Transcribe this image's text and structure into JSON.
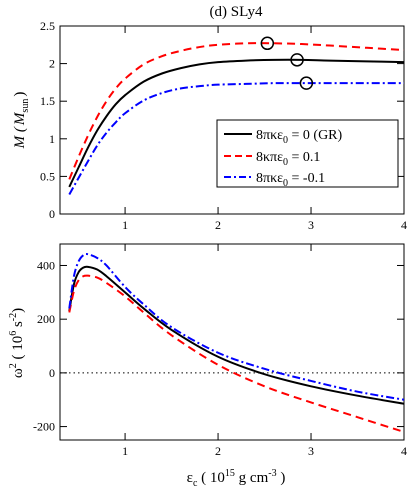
{
  "title": "(d) SLy4",
  "colors": {
    "gr": "#000000",
    "pos": "#ff0000",
    "neg": "#0000ff"
  },
  "legend": {
    "entries": [
      {
        "prefix": "8πκε",
        "sub": "0",
        "suffix": " = 0 (GR)"
      },
      {
        "prefix": "8κπε",
        "sub": "0",
        "suffix": " = 0.1"
      },
      {
        "prefix": "8πκε",
        "sub": "0",
        "suffix": " = -0.1"
      }
    ]
  },
  "axes": {
    "top": {
      "label_main": "M (",
      "label_italic": "M",
      "label_sub": "sun",
      "label_close": ")"
    },
    "bottom": {
      "label_main": "ω",
      "label_sup": "2",
      "label_unit": " ( 10",
      "label_unit_sup": "6",
      "label_unit2": " s",
      "label_unit2_sup": "-2",
      "label_close": ")"
    },
    "x": {
      "label_main": "ε",
      "label_sub": "c",
      "label_mid": " ( 10",
      "label_sup": "15",
      "label_end": " g cm",
      "label_end_sup": "-3",
      "label_close": " )"
    }
  },
  "chart_data": [
    {
      "type": "line",
      "title": "(d) SLy4",
      "xlabel": "εc (10^15 g cm^-3)",
      "ylabel": "M (Msun)",
      "xlim": [
        0.3,
        4.0
      ],
      "ylim": [
        0,
        2.5
      ],
      "xticks": [
        1,
        2,
        3,
        4
      ],
      "yticks": [
        0,
        0.5,
        1,
        1.5,
        2,
        2.5
      ],
      "grid": false,
      "legend_position": "center-right",
      "series": [
        {
          "key": "gr",
          "name": "8πκε0 = 0 (GR)",
          "style": "solid",
          "x": [
            0.4,
            0.5,
            0.6,
            0.7,
            0.8,
            0.9,
            1.0,
            1.2,
            1.4,
            1.6,
            1.8,
            2.0,
            2.3,
            2.6,
            2.9,
            3.2,
            3.6,
            4.0
          ],
          "y": [
            0.36,
            0.62,
            0.88,
            1.11,
            1.3,
            1.46,
            1.58,
            1.76,
            1.87,
            1.94,
            1.99,
            2.02,
            2.04,
            2.05,
            2.05,
            2.04,
            2.03,
            2.02
          ],
          "max_marker": [
            2.85,
            2.05
          ]
        },
        {
          "key": "pos",
          "name": "8κπε0 = 0.1",
          "style": "dashed",
          "x": [
            0.4,
            0.5,
            0.6,
            0.7,
            0.8,
            0.9,
            1.0,
            1.2,
            1.4,
            1.6,
            1.8,
            2.0,
            2.3,
            2.6,
            2.9,
            3.2,
            3.6,
            4.0
          ],
          "y": [
            0.46,
            0.76,
            1.04,
            1.29,
            1.5,
            1.67,
            1.8,
            1.99,
            2.1,
            2.17,
            2.22,
            2.25,
            2.27,
            2.27,
            2.26,
            2.24,
            2.21,
            2.18
          ],
          "max_marker": [
            2.53,
            2.27
          ]
        },
        {
          "key": "neg",
          "name": "8πκε0 = -0.1",
          "style": "dashdot",
          "x": [
            0.4,
            0.5,
            0.6,
            0.7,
            0.8,
            0.9,
            1.0,
            1.2,
            1.4,
            1.6,
            1.8,
            2.0,
            2.3,
            2.6,
            2.9,
            3.2,
            3.6,
            4.0
          ],
          "y": [
            0.26,
            0.48,
            0.7,
            0.91,
            1.08,
            1.22,
            1.34,
            1.51,
            1.61,
            1.67,
            1.7,
            1.72,
            1.73,
            1.74,
            1.74,
            1.74,
            1.74,
            1.74
          ],
          "max_marker": [
            2.95,
            1.74
          ]
        }
      ]
    },
    {
      "type": "line",
      "xlabel": "εc (10^15 g cm^-3)",
      "ylabel": "ω^2 (10^6 s^-2)",
      "xlim": [
        0.3,
        4.0
      ],
      "ylim": [
        -250,
        480
      ],
      "xticks": [
        1,
        2,
        3,
        4
      ],
      "yticks": [
        -200,
        0,
        200,
        400
      ],
      "grid": false,
      "reference_line": 0,
      "series": [
        {
          "key": "gr",
          "name": "8πκε0 = 0 (GR)",
          "style": "solid",
          "x": [
            0.4,
            0.45,
            0.5,
            0.55,
            0.6,
            0.7,
            0.8,
            1.0,
            1.2,
            1.5,
            2.0,
            2.5,
            3.0,
            3.5,
            4.0
          ],
          "y": [
            230,
            330,
            375,
            392,
            395,
            385,
            360,
            300,
            240,
            160,
            60,
            -5,
            -50,
            -85,
            -115
          ]
        },
        {
          "key": "pos",
          "name": "8κπε0 = 0.1",
          "style": "dashed",
          "x": [
            0.4,
            0.45,
            0.5,
            0.55,
            0.6,
            0.7,
            0.8,
            1.0,
            1.2,
            1.5,
            2.0,
            2.5,
            3.0,
            3.5,
            4.0
          ],
          "y": [
            225,
            305,
            345,
            360,
            362,
            355,
            335,
            285,
            225,
            140,
            30,
            -50,
            -110,
            -165,
            -220
          ]
        },
        {
          "key": "neg",
          "name": "8πκε0 = -0.1",
          "style": "dashdot",
          "x": [
            0.4,
            0.45,
            0.5,
            0.55,
            0.6,
            0.7,
            0.8,
            1.0,
            1.2,
            1.5,
            2.0,
            2.5,
            3.0,
            3.5,
            4.0
          ],
          "y": [
            240,
            360,
            415,
            438,
            442,
            428,
            400,
            320,
            255,
            170,
            75,
            15,
            -30,
            -70,
            -100
          ]
        }
      ]
    }
  ]
}
